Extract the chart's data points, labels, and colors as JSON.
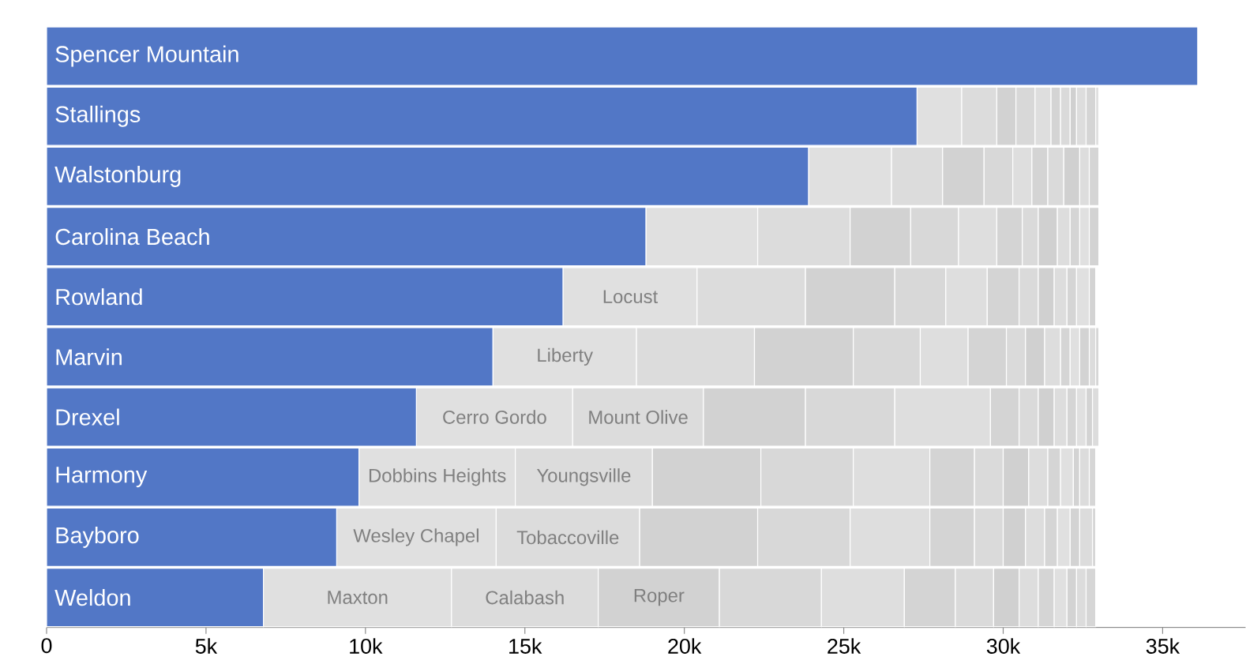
{
  "chart_data": {
    "type": "bar",
    "orientation": "horizontal",
    "stacked": true,
    "categories": [
      "Spencer Mountain",
      "Stallings",
      "Walstonburg",
      "Carolina Beach",
      "Rowland",
      "Marvin",
      "Drexel",
      "Harmony",
      "Bayboro",
      "Weldon"
    ],
    "xlim": [
      0,
      37600
    ],
    "xticks": [
      0,
      {
        "value": 5000,
        "label": "5k"
      },
      {
        "value": 10000,
        "label": "10k"
      },
      {
        "value": 15000,
        "label": "15k"
      },
      {
        "value": 20000,
        "label": "20k"
      },
      {
        "value": 25000,
        "label": "25k"
      },
      {
        "value": 30000,
        "label": "30k"
      },
      {
        "value": 35000,
        "label": "35k"
      }
    ],
    "series": [
      {
        "color": "#5277c6",
        "values": [
          36100,
          27300,
          23900,
          18800,
          16200,
          14000,
          11600,
          9800,
          9100,
          6800
        ]
      },
      {
        "color": "#e0e0e0",
        "values": [
          null,
          1400,
          2600,
          3500,
          4200,
          4500,
          4900,
          4900,
          5000,
          5900
        ],
        "value_labels": [
          null,
          null,
          null,
          null,
          "Locust",
          "Liberty",
          "Cerro Gordo",
          "Dobbins Heights",
          "Wesley Chapel",
          "Maxton"
        ]
      },
      {
        "color": "#dcdcdc",
        "values": [
          null,
          1100,
          1600,
          2900,
          3400,
          3700,
          4100,
          4300,
          4500,
          4600
        ],
        "value_labels": [
          null,
          null,
          null,
          null,
          null,
          null,
          "Mount Olive",
          "Youngsville",
          "Tobaccoville",
          "Calabash"
        ]
      },
      {
        "color": "#d2d2d2",
        "values": [
          null,
          600,
          1300,
          1900,
          2800,
          3100,
          3200,
          3400,
          3700,
          3800
        ],
        "value_labels": [
          null,
          null,
          null,
          null,
          null,
          null,
          null,
          null,
          null,
          "Roper"
        ]
      },
      {
        "color": "#d8d8d8",
        "values": [
          null,
          600,
          900,
          1500,
          1600,
          2100,
          2800,
          2900,
          2900,
          3200
        ]
      },
      {
        "color": "#dedede",
        "values": [
          null,
          500,
          600,
          1200,
          1300,
          1500,
          3000,
          2400,
          2500,
          2600
        ]
      },
      {
        "color": "#d4d4d4",
        "values": [
          null,
          300,
          500,
          800,
          1000,
          1200,
          900,
          1400,
          1400,
          1600
        ]
      },
      {
        "color": "#dadada",
        "values": [
          null,
          300,
          500,
          500,
          600,
          600,
          600,
          900,
          900,
          1200
        ]
      },
      {
        "color": "#d0d0d0",
        "values": [
          null,
          200,
          500,
          600,
          500,
          600,
          500,
          800,
          700,
          800
        ]
      },
      {
        "color": "#dddddd",
        "values": [
          null,
          300,
          300,
          400,
          400,
          500,
          400,
          600,
          600,
          600
        ]
      },
      {
        "color": "#d5d5d5",
        "values": [
          null,
          300,
          300,
          300,
          300,
          300,
          300,
          400,
          400,
          500
        ]
      },
      {
        "color": "#e0e0e0",
        "values": [
          null,
          100,
          null,
          300,
          400,
          300,
          300,
          400,
          400,
          400
        ]
      },
      {
        "color": "#d3d3d3",
        "values": [
          null,
          null,
          null,
          300,
          200,
          300,
          200,
          200,
          300,
          300
        ]
      },
      {
        "color": "#dcdcdc",
        "values": [
          null,
          null,
          null,
          null,
          null,
          200,
          200,
          300,
          400,
          300
        ]
      },
      {
        "color": "#d6d6d6",
        "values": [
          null,
          null,
          null,
          null,
          null,
          100,
          null,
          200,
          100,
          300
        ]
      }
    ]
  }
}
